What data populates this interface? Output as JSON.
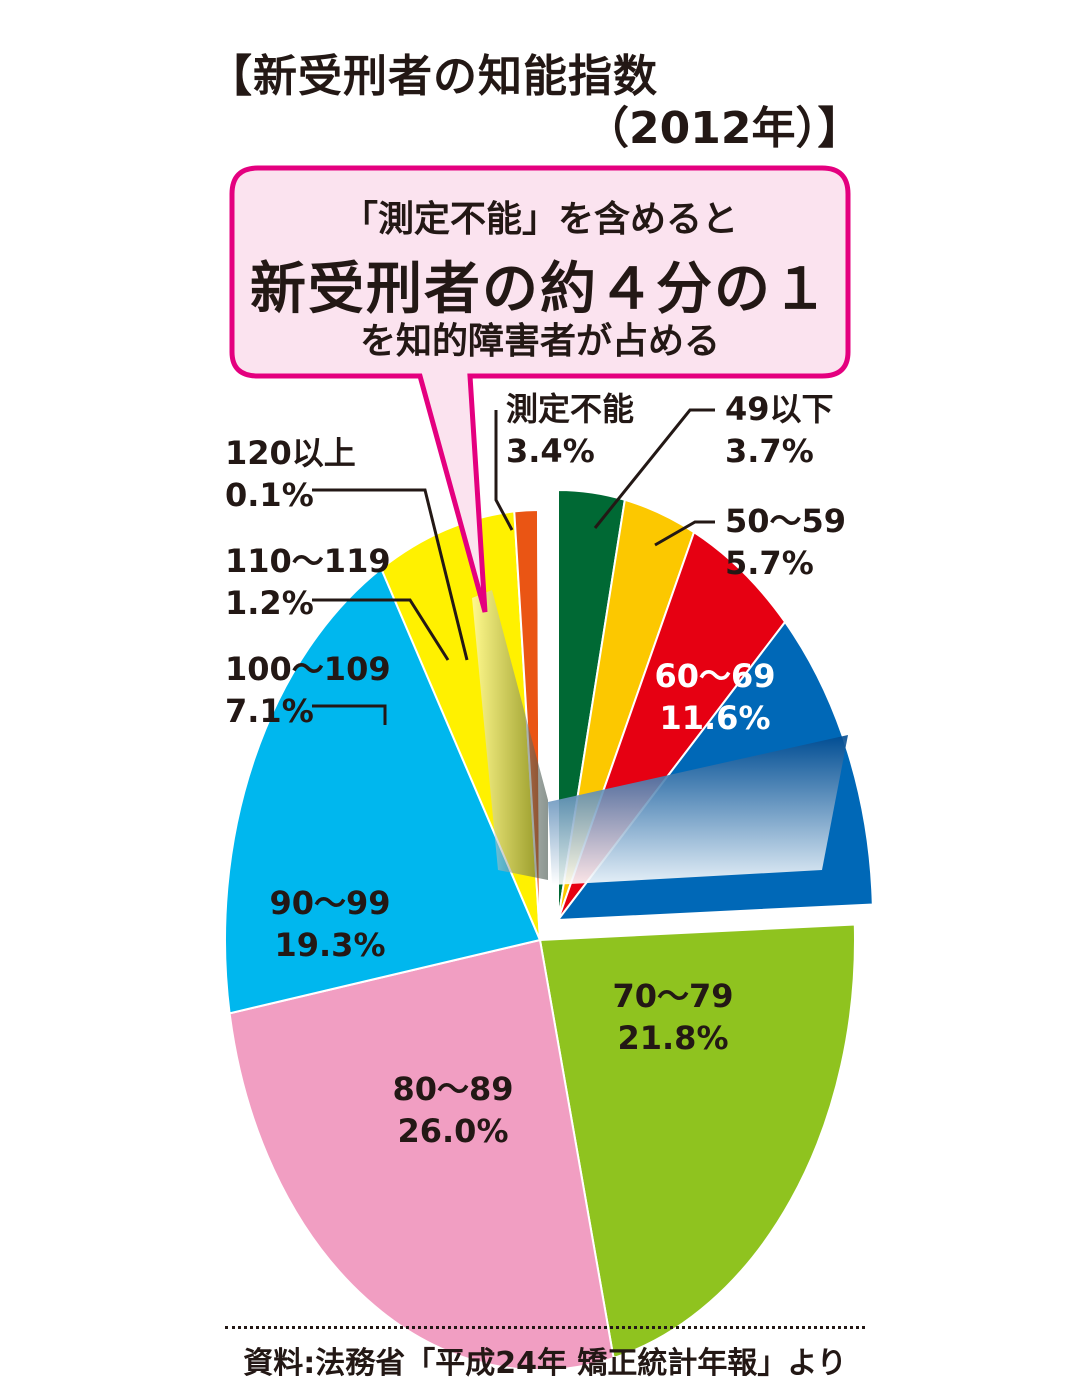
{
  "title": {
    "line1": "【新受刑者の知能指数",
    "line2": "（2012年）】"
  },
  "callout": {
    "line1": "「測定不能」を含めると",
    "line2": "新受刑者の約４分の１",
    "line3": "を知的障害者が占める",
    "border_color": "#e4007f",
    "fill_color": "#fbe3ef"
  },
  "chart_data": {
    "type": "pie",
    "categories": [
      "測定不能",
      "49以下",
      "50〜59",
      "60〜69",
      "70〜79",
      "80〜89",
      "90〜99",
      "100〜109",
      "110〜119",
      "120以上"
    ],
    "values": [
      3.4,
      3.7,
      5.7,
      11.6,
      21.8,
      26.0,
      19.3,
      7.1,
      1.2,
      0.1
    ],
    "value_labels": [
      "3.4%",
      "3.7%",
      "5.7%",
      "11.6%",
      "21.8%",
      "26.0%",
      "19.3%",
      "7.1%",
      "1.2%",
      "0.1%"
    ],
    "colors": [
      "#006934",
      "#fcc800",
      "#e60012",
      "#0068b7",
      "#8fc31f",
      "#f19ec2",
      "#00b7ee",
      "#fff100",
      "#ea5514",
      "#ffffff"
    ],
    "unit": "%"
  },
  "source": "資料:法務省「平成24年 矯正統計年報」より"
}
